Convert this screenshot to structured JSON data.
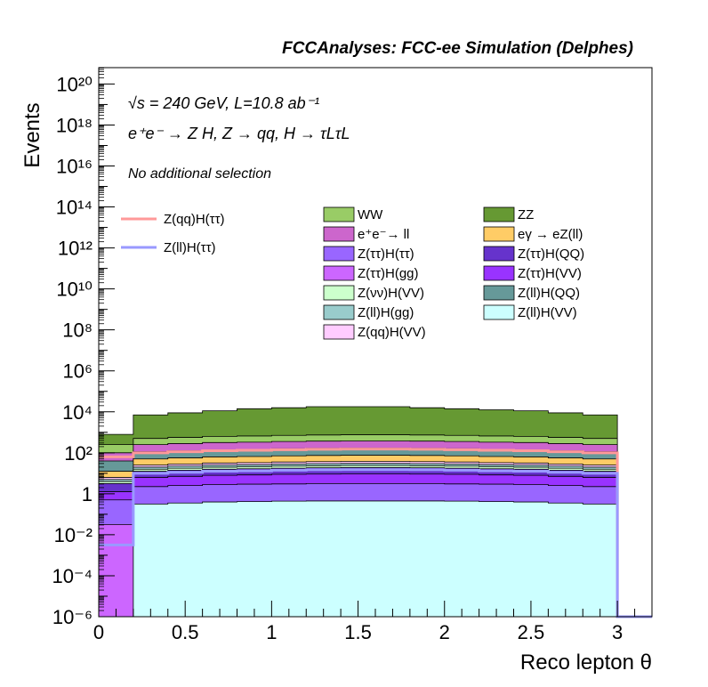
{
  "chart_data": {
    "type": "area",
    "title": "FCCAnalyses: FCC-ee Simulation (Delphes)",
    "xlabel": "Reco lepton θ",
    "ylabel": "Events",
    "xlim": [
      0,
      3.2
    ],
    "ylog": true,
    "ylim_exp": [
      -6,
      20.8
    ],
    "grid": false,
    "annotations": [
      "√s = 240 GeV, L=10.8 ab⁻¹",
      "e⁺e⁻ → Z H, Z → qq, H → τLτL",
      "No additional selection"
    ],
    "x_ticks": [
      "0",
      "0.5",
      "1",
      "1.5",
      "2",
      "2.5",
      "3"
    ],
    "x_tick_values": [
      0,
      0.5,
      1,
      1.5,
      2,
      2.5,
      3
    ],
    "y_ticks": [
      {
        "exp": -6,
        "label": "10⁻⁶"
      },
      {
        "exp": -4,
        "label": "10⁻⁴"
      },
      {
        "exp": -2,
        "label": "10⁻²"
      },
      {
        "exp": 0,
        "label": "1"
      },
      {
        "exp": 2,
        "label": "10²"
      },
      {
        "exp": 4,
        "label": "10⁴"
      },
      {
        "exp": 6,
        "label": "10⁶"
      },
      {
        "exp": 8,
        "label": "10⁸"
      },
      {
        "exp": 10,
        "label": "10¹⁰"
      },
      {
        "exp": 12,
        "label": "10¹²"
      },
      {
        "exp": 14,
        "label": "10¹⁴"
      },
      {
        "exp": 16,
        "label": "10¹⁶"
      },
      {
        "exp": 18,
        "label": "10¹⁸"
      },
      {
        "exp": 20,
        "label": "10²⁰"
      }
    ],
    "bin_edges": [
      0,
      0.2,
      0.4,
      0.6,
      0.8,
      1.0,
      1.2,
      1.4,
      1.6,
      1.8,
      2.0,
      2.2,
      2.4,
      2.6,
      2.8,
      3.0,
      3.2
    ],
    "stack": [
      {
        "name": "Z(ll)H(VV)",
        "color": "#ccffff",
        "top_log": [
          -6,
          -0.5,
          -0.45,
          -0.4,
          -0.38,
          -0.36,
          -0.35,
          -0.35,
          -0.35,
          -0.35,
          -0.36,
          -0.38,
          -0.4,
          -0.45,
          -0.5,
          -6
        ]
      },
      {
        "name": "Z(ττ)H(gg)",
        "color": "#cc66ff",
        "top_log": [
          -1.5,
          -0.7,
          -0.65,
          -0.6,
          -0.58,
          -0.55,
          -0.55,
          -0.55,
          -0.55,
          -0.55,
          -0.55,
          -0.58,
          -0.6,
          -0.65,
          -0.7,
          -6
        ]
      },
      {
        "name": "Z(ττ)H(ττ)",
        "color": "#9966ff",
        "top_log": [
          -0.3,
          0.35,
          0.4,
          0.45,
          0.47,
          0.48,
          0.5,
          0.5,
          0.5,
          0.5,
          0.48,
          0.47,
          0.45,
          0.4,
          0.35,
          -6
        ]
      },
      {
        "name": "Z(ττ)H(VV)",
        "color": "#9933ff",
        "top_log": [
          0.1,
          0.8,
          0.85,
          0.9,
          0.92,
          0.95,
          0.96,
          0.97,
          0.97,
          0.96,
          0.95,
          0.92,
          0.9,
          0.85,
          0.8,
          -6
        ]
      },
      {
        "name": "Z(ττ)H(QQ)",
        "color": "#6633cc",
        "top_log": [
          0.5,
          1.1,
          1.15,
          1.2,
          1.22,
          1.25,
          1.27,
          1.28,
          1.28,
          1.27,
          1.25,
          1.22,
          1.2,
          1.15,
          1.1,
          -6
        ]
      },
      {
        "name": "Z(νν)H(VV)",
        "color": "#ccffcc",
        "top_log": [
          0.6,
          1.2,
          1.25,
          1.3,
          1.32,
          1.35,
          1.37,
          1.38,
          1.38,
          1.37,
          1.35,
          1.32,
          1.3,
          1.25,
          1.2,
          -6
        ]
      },
      {
        "name": "Z(ll)H(gg)",
        "color": "#99cccc",
        "top_log": [
          0.7,
          1.3,
          1.35,
          1.4,
          1.42,
          1.45,
          1.47,
          1.48,
          1.48,
          1.47,
          1.45,
          1.42,
          1.4,
          1.35,
          1.3,
          -6
        ]
      },
      {
        "name": "Z(qq)H(VV)",
        "color": "#ffccff",
        "top_log": [
          0.8,
          1.4,
          1.45,
          1.5,
          1.52,
          1.55,
          1.57,
          1.58,
          1.58,
          1.57,
          1.55,
          1.52,
          1.5,
          1.45,
          1.4,
          -6
        ]
      },
      {
        "name": "eγ → eZ(ll)",
        "color": "#ffcc66",
        "top_log": [
          1.1,
          1.7,
          1.75,
          1.8,
          1.82,
          1.85,
          1.87,
          1.88,
          1.88,
          1.87,
          1.85,
          1.82,
          1.8,
          1.75,
          1.7,
          -6
        ]
      },
      {
        "name": "Z(ll)H(QQ)",
        "color": "#669999",
        "top_log": [
          1.6,
          2.05,
          2.1,
          2.15,
          2.17,
          2.2,
          2.22,
          2.23,
          2.23,
          2.22,
          2.2,
          2.17,
          2.15,
          2.1,
          2.05,
          -6
        ]
      },
      {
        "name": "e⁺e⁻→ ll",
        "color": "#cc66cc",
        "top_log": [
          2.0,
          2.4,
          2.45,
          2.5,
          2.52,
          2.55,
          2.57,
          2.58,
          2.58,
          2.57,
          2.55,
          2.52,
          2.5,
          2.45,
          2.4,
          -6
        ]
      },
      {
        "name": "WW",
        "color": "#99cc66",
        "top_log": [
          2.4,
          2.7,
          2.75,
          2.8,
          2.82,
          2.85,
          2.87,
          2.88,
          2.88,
          2.87,
          2.85,
          2.82,
          2.8,
          2.75,
          2.7,
          -6
        ]
      },
      {
        "name": "ZZ",
        "color": "#669933",
        "top_log": [
          2.9,
          3.85,
          3.95,
          4.05,
          4.15,
          4.2,
          4.25,
          4.25,
          4.25,
          4.2,
          4.15,
          4.1,
          4.05,
          3.95,
          3.85,
          -6
        ]
      }
    ],
    "lines": [
      {
        "name": "Z(qq)H(ττ)",
        "color": "#ff9999",
        "top_log": [
          1.8,
          2.0,
          2.05,
          2.1,
          2.12,
          2.15,
          2.17,
          2.18,
          2.18,
          2.17,
          2.15,
          2.12,
          2.1,
          2.05,
          2.0,
          -6
        ]
      },
      {
        "name": "Z(ll)H(ττ)",
        "color": "#9999ff",
        "top_log": [
          -2.5,
          1.0,
          1.05,
          1.1,
          1.12,
          1.15,
          1.17,
          1.18,
          1.18,
          1.17,
          1.15,
          1.12,
          1.1,
          1.05,
          1.0,
          -6
        ]
      }
    ],
    "legend": {
      "lines": [
        {
          "label": "Z(qq)H(ττ)",
          "color": "#ff9999"
        },
        {
          "label": "Z(ll)H(ττ)",
          "color": "#9999ff"
        }
      ],
      "boxes_col1": [
        {
          "label": "WW",
          "color": "#99cc66"
        },
        {
          "label": "e⁺e⁻→ ll",
          "color": "#cc66cc"
        },
        {
          "label": "Z(ττ)H(ττ)",
          "color": "#9966ff"
        },
        {
          "label": "Z(ττ)H(gg)",
          "color": "#cc66ff"
        },
        {
          "label": "Z(νν)H(VV)",
          "color": "#ccffcc"
        },
        {
          "label": "Z(ll)H(gg)",
          "color": "#99cccc"
        },
        {
          "label": "Z(qq)H(VV)",
          "color": "#ffccff"
        }
      ],
      "boxes_col2": [
        {
          "label": "ZZ",
          "color": "#669933"
        },
        {
          "label": "eγ → eZ(ll)",
          "color": "#ffcc66"
        },
        {
          "label": "Z(ττ)H(QQ)",
          "color": "#6633cc"
        },
        {
          "label": "Z(ττ)H(VV)",
          "color": "#9933ff"
        },
        {
          "label": "Z(ll)H(QQ)",
          "color": "#669999"
        },
        {
          "label": "Z(ll)H(VV)",
          "color": "#ccffff"
        }
      ]
    }
  }
}
